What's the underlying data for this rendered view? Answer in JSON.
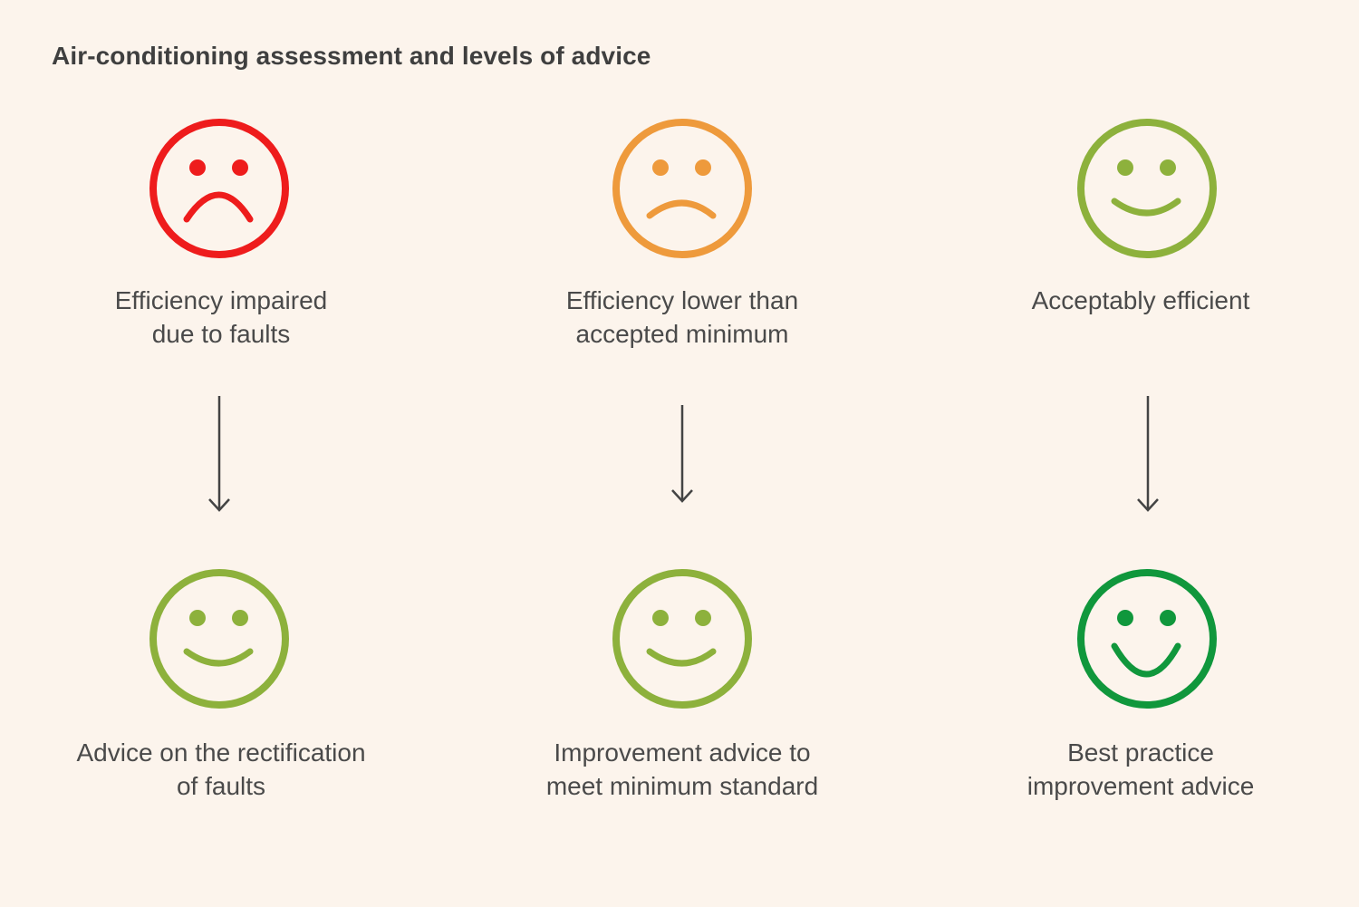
{
  "title": "Air-conditioning assessment and levels of advice",
  "colors": {
    "background": "#fcf4ec",
    "red": "#ee1c1c",
    "orange": "#ee9a3c",
    "light_green": "#8db13c",
    "green": "#10973c",
    "arrow": "#444444"
  },
  "columns": [
    {
      "assessment": {
        "face": "sad-face-icon",
        "color": "#ee1c1c",
        "lines": [
          "Efficiency impaired",
          "due to faults"
        ]
      },
      "advice": {
        "face": "smiley-face-icon",
        "color": "#8db13c",
        "lines": [
          "Advice on the rectification",
          "of faults"
        ]
      }
    },
    {
      "assessment": {
        "face": "sad-face-icon",
        "color": "#ee9a3c",
        "lines": [
          "Efficiency lower than",
          "accepted minimum"
        ]
      },
      "advice": {
        "face": "smiley-face-icon",
        "color": "#8db13c",
        "lines": [
          "Improvement advice to",
          "meet minimum standard"
        ]
      }
    },
    {
      "assessment": {
        "face": "smiley-face-icon",
        "color": "#8db13c",
        "lines": [
          "Acceptably efficient"
        ]
      },
      "advice": {
        "face": "big-smile-face-icon",
        "color": "#10973c",
        "lines": [
          "Best practice",
          "improvement advice"
        ]
      }
    }
  ]
}
